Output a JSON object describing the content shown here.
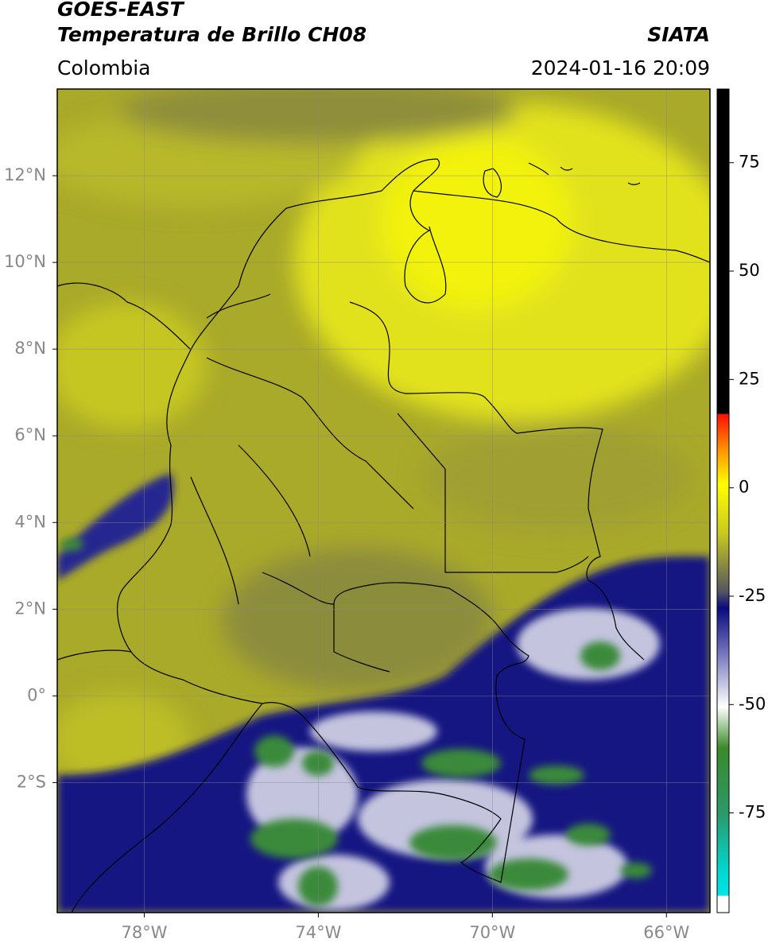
{
  "header": {
    "title": "GOES-EAST",
    "subtitle": "Temperatura de Brillo CH08",
    "source": "SIATA",
    "region": "Colombia",
    "datetime": "2024-01-16 20:09"
  },
  "map": {
    "xlim": [
      -80,
      -65
    ],
    "ylim": [
      -5,
      14
    ],
    "lon_ticks": [
      {
        "value": -78,
        "label": "78°W"
      },
      {
        "value": -74,
        "label": "74°W"
      },
      {
        "value": -70,
        "label": "70°W"
      },
      {
        "value": -66,
        "label": "66°W"
      }
    ],
    "lat_ticks": [
      {
        "value": 12,
        "label": "12°N"
      },
      {
        "value": 10,
        "label": "10°N"
      },
      {
        "value": 8,
        "label": "8°N"
      },
      {
        "value": 6,
        "label": "6°N"
      },
      {
        "value": 4,
        "label": "4°N"
      },
      {
        "value": 2,
        "label": "2°N"
      },
      {
        "value": 0,
        "label": "0°"
      },
      {
        "value": -2,
        "label": "2°S"
      }
    ]
  },
  "colorbar": {
    "lim": [
      -98,
      92
    ],
    "ticks": [
      75,
      50,
      25,
      0,
      -25,
      -50,
      -75
    ]
  }
}
